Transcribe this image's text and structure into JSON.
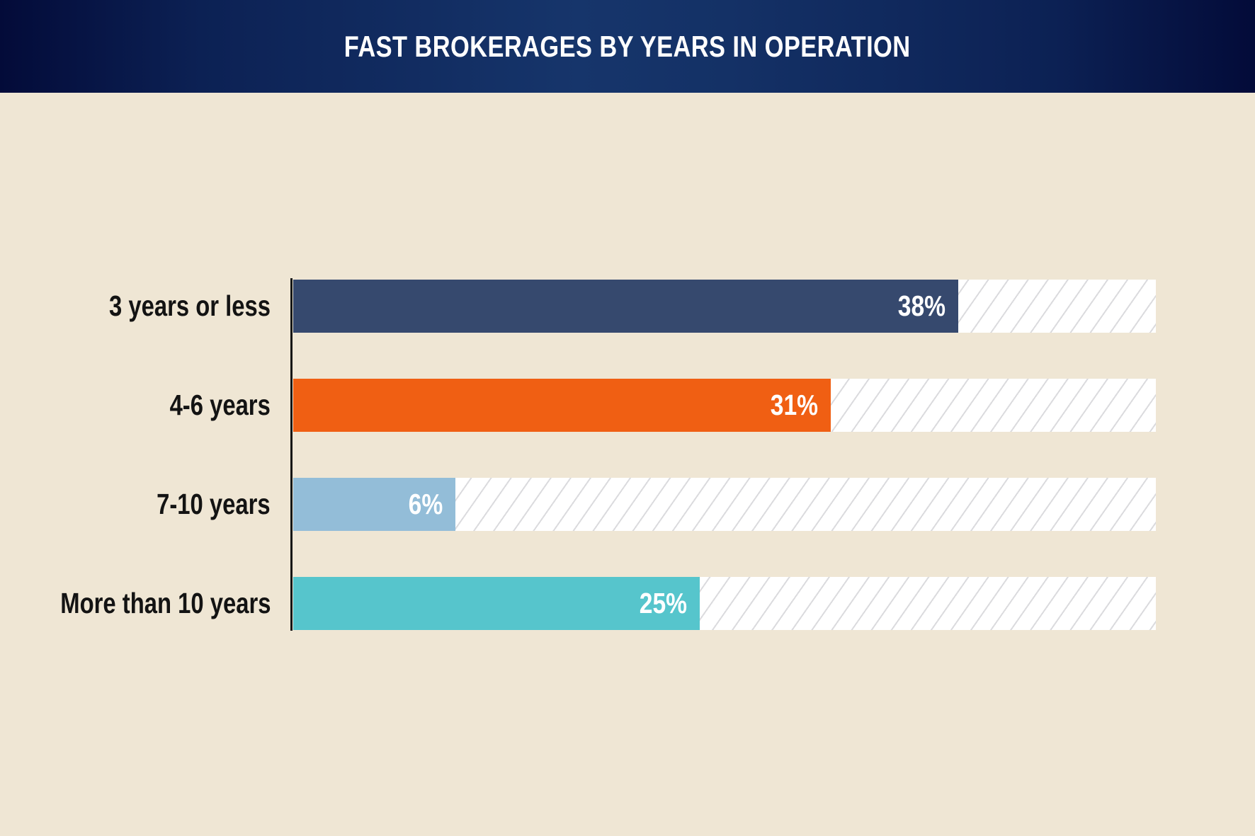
{
  "page": {
    "background": "#EFE6D4"
  },
  "header": {
    "title": "FAST BROKERAGES BY YEARS IN OPERATION",
    "text_color": "#FFFFFF",
    "gradient_edge_color": "#030B39",
    "gradient_center_color": "#16356B"
  },
  "chart_data": {
    "type": "bar",
    "orientation": "horizontal",
    "title": "FAST BROKERAGES BY YEARS IN OPERATION",
    "categories": [
      "3 years or less",
      "4-6 years",
      "7-10 years",
      "More than 10 years"
    ],
    "values": [
      38,
      31,
      6,
      25
    ],
    "value_labels": [
      "38%",
      "31%",
      "6%",
      "25%"
    ],
    "unit": "percent",
    "bar_colors": [
      "#36496E",
      "#F05F13",
      "#93BDD8",
      "#56C5CC"
    ],
    "value_label_color": "#FFFFFF",
    "category_label_color": "#131313",
    "axis_line_color": "#161616",
    "track_background": "#FFFFFF",
    "track_hatch_color": "#DBDBDE",
    "grid": false,
    "legend": false,
    "layout_hints": {
      "bar_fill_fraction_of_track_pct": [
        77.1,
        62.3,
        18.8,
        47.1
      ]
    }
  }
}
